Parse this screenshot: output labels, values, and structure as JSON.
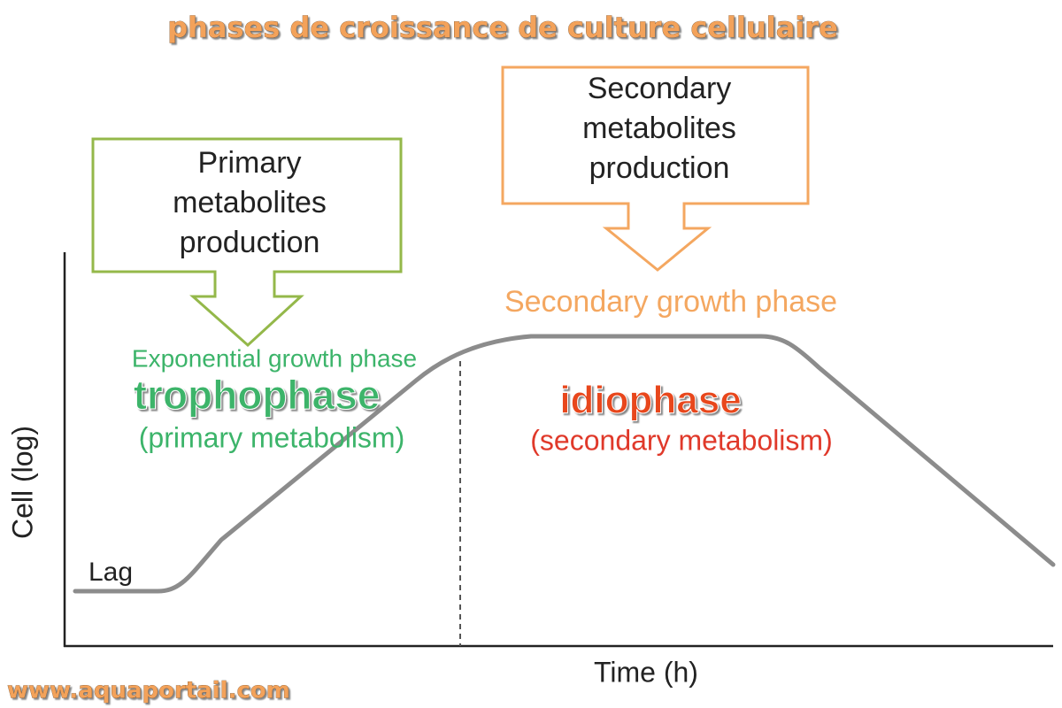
{
  "title": "phases de croissance de culture cellulaire",
  "boxes": [
    {
      "lines": [
        "Primary",
        "metabolites",
        "production"
      ]
    },
    {
      "lines": [
        "Secondary",
        "metabolites",
        "production"
      ]
    }
  ],
  "phases": {
    "exponential": "Exponential growth phase",
    "secondary_growth": "Secondary growth phase",
    "trophophase": "trophophase",
    "trophophase_note": "(primary metabolism)",
    "idiophase": "idiophase",
    "idiophase_note": "(secondary metabolism)",
    "lag": "Lag"
  },
  "axes": {
    "y": "Cell (log)",
    "x": "Time (h)"
  },
  "watermark": "www.aquaportail.com"
}
